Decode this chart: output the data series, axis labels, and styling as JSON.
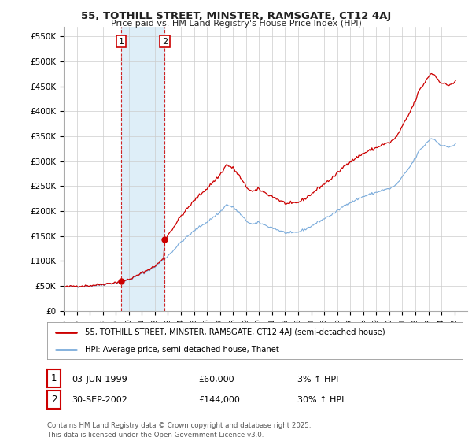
{
  "title": "55, TOTHILL STREET, MINSTER, RAMSGATE, CT12 4AJ",
  "subtitle": "Price paid vs. HM Land Registry's House Price Index (HPI)",
  "ylabel_ticks": [
    "£0",
    "£50K",
    "£100K",
    "£150K",
    "£200K",
    "£250K",
    "£300K",
    "£350K",
    "£400K",
    "£450K",
    "£500K",
    "£550K"
  ],
  "ytick_values": [
    0,
    50000,
    100000,
    150000,
    200000,
    250000,
    300000,
    350000,
    400000,
    450000,
    500000,
    550000
  ],
  "ylim": [
    0,
    570000
  ],
  "x_start_year": 1995,
  "x_end_year": 2025,
  "line1_color": "#cc0000",
  "line2_color": "#7aabdb",
  "purchase1_year": 1999.42,
  "purchase1_price": 60000,
  "purchase2_year": 2002.75,
  "purchase2_price": 144000,
  "vline1_year": 1999.42,
  "vline2_year": 2002.75,
  "shade_color": "#deeef8",
  "legend1_label": "55, TOTHILL STREET, MINSTER, RAMSGATE, CT12 4AJ (semi-detached house)",
  "legend2_label": "HPI: Average price, semi-detached house, Thanet",
  "annot1_date": "03-JUN-1999",
  "annot1_price": "£60,000",
  "annot1_hpi": "3% ↑ HPI",
  "annot2_date": "30-SEP-2002",
  "annot2_price": "£144,000",
  "annot2_hpi": "30% ↑ HPI",
  "footer": "Contains HM Land Registry data © Crown copyright and database right 2025.\nThis data is licensed under the Open Government Licence v3.0.",
  "bg_color": "#ffffff",
  "grid_color": "#cccccc"
}
